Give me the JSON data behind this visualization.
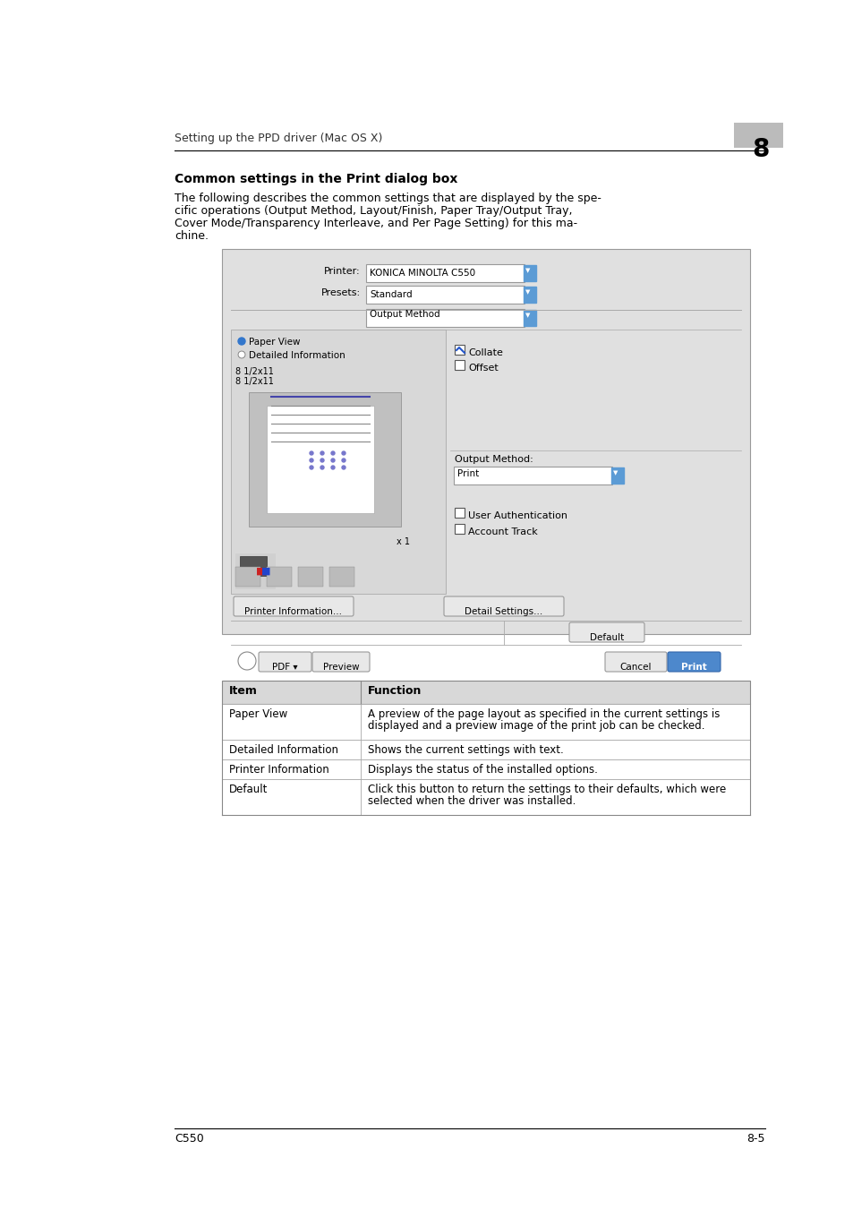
{
  "bg_color": "#ffffff",
  "header_text": "Setting up the PPD driver (Mac OS X)",
  "header_number": "8",
  "section_title": "Common settings in the Print dialog box",
  "body_text": "The following describes the common settings that are displayed by the spe-\ncific operations (Output Method, Layout/Finish, Paper Tray/Output Tray,\nCover Mode/Transparency Interleave, and Per Page Setting) for this ma-\nchine.",
  "table_headers": [
    "Item",
    "Function"
  ],
  "table_rows": [
    [
      "Paper View",
      "A preview of the page layout as specified in the current settings is\ndisplayed and a preview image of the print job can be checked."
    ],
    [
      "Detailed Information",
      "Shows the current settings with text."
    ],
    [
      "Printer Information",
      "Displays the status of the installed options."
    ],
    [
      "Default",
      "Click this button to return the settings to their defaults, which were\nselected when the driver was installed."
    ]
  ],
  "footer_left": "C550",
  "footer_right": "8-5",
  "dialog_bg": "#e8e8e8",
  "dialog_border": "#aaaaaa",
  "printer_label": "Printer:",
  "printer_value": "KONICA MINOLTA C550",
  "presets_label": "Presets:",
  "presets_value": "Standard",
  "output_method_value": "Output Method",
  "paper_view_label": "Paper View",
  "detailed_info_label": "Detailed Information",
  "paper_size1": "8 1/2x11",
  "paper_size2": "8 1/2x11",
  "collate_label": "Collate",
  "offset_label": "Offset",
  "output_method_label": "Output Method:",
  "print_value": "Print",
  "user_auth_label": "User Authentication",
  "account_track_label": "Account Track",
  "printer_info_btn": "Printer Information...",
  "detail_settings_btn": "Detail Settings...",
  "default_btn": "Default",
  "pdf_btn": "PDF ▾",
  "preview_btn": "Preview",
  "cancel_btn": "Cancel",
  "print_btn": "Print"
}
